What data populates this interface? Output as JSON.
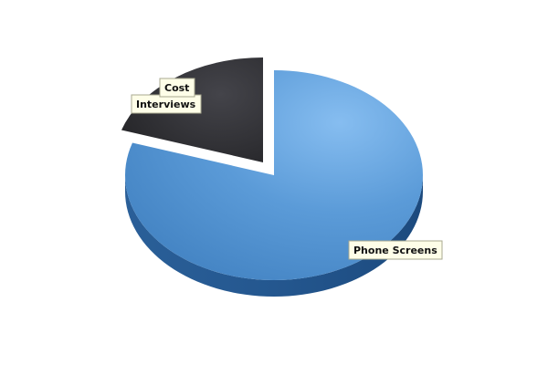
{
  "chart_data": {
    "type": "pie",
    "style": "3d-exploded",
    "title": "",
    "slices": [
      {
        "label": "Phone Screens",
        "value": 80,
        "color": "#5a9ad8"
      },
      {
        "label": "Interviews",
        "value": 20,
        "color": "#2b2b2e"
      },
      {
        "label": "Cost",
        "value": 0,
        "color": "#1a1a1a"
      }
    ],
    "label_box_color": "#fefee8",
    "label_border_color": "#a8a890"
  }
}
